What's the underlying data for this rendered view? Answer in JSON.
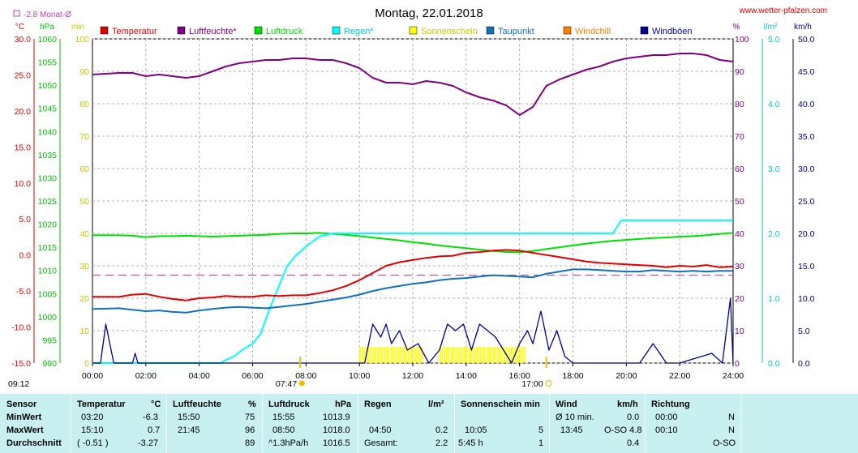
{
  "chart_data": {
    "type": "line",
    "title": "Montag, 22.01.2018",
    "source": "www.wetter-pfalzen.com",
    "month_avg_label": "-2.8 Monat-Ø",
    "colors": {
      "temperature": "#e00000",
      "humidity": "#800080",
      "pressure": "#00e000",
      "rain": "#00ffff",
      "sunshine": "#ffff00",
      "dewpoint": "#1070c0",
      "windchill": "#ff8000",
      "gusts": "#000090",
      "month_avg": "#c040c0"
    },
    "legend": [
      "Temperatur",
      "Luftfeuchte*",
      "Luftdruck",
      "Regen*",
      "Sonnenschein",
      "Taupunkt",
      "Windchill",
      "Windböen"
    ],
    "axes": {
      "temp": {
        "unit": "°C",
        "min": -15,
        "max": 30,
        "ticks": [
          "30.0",
          "25.0",
          "20.0",
          "15.0",
          "10.0",
          "5.0",
          "0.0",
          "-5.0",
          "-10.0",
          "-15.0"
        ]
      },
      "pressure": {
        "unit": "hPa",
        "min": 990,
        "max": 1060,
        "ticks": [
          "1060",
          "1055",
          "1050",
          "1045",
          "1040",
          "1035",
          "1030",
          "1025",
          "1020",
          "1015",
          "1010",
          "1005",
          "1000",
          "995",
          "990"
        ]
      },
      "sun": {
        "unit": "min",
        "min": 0,
        "max": 100,
        "ticks": [
          "100",
          "90",
          "80",
          "70",
          "60",
          "50",
          "40",
          "30",
          "20",
          "10",
          "0"
        ]
      },
      "humidity": {
        "unit": "%",
        "min": 0,
        "max": 100,
        "ticks": [
          "100",
          "90",
          "80",
          "70",
          "60",
          "50",
          "40",
          "30",
          "20",
          "10",
          "0"
        ]
      },
      "rain": {
        "unit": "l/m²",
        "min": 0,
        "max": 5,
        "ticks": [
          "5.0",
          "4.0",
          "3.0",
          "2.0",
          "1.0",
          "0.0"
        ]
      },
      "wind": {
        "unit": "km/h",
        "min": 0,
        "max": 50,
        "ticks": [
          "50.0",
          "45.0",
          "40.0",
          "35.0",
          "30.0",
          "25.0",
          "20.0",
          "15.0",
          "10.0",
          "5.0",
          "0.0"
        ]
      },
      "x_ticks": [
        "00:00",
        "02:00",
        "04:00",
        "06:00",
        "08:00",
        "10:00",
        "12:00",
        "14:00",
        "16:00",
        "18:00",
        "20:00",
        "22:00",
        "24:00"
      ]
    },
    "sunrise": "07:47",
    "sunset": "17:00",
    "sun_event_left": "09:12",
    "month_avg_temp": -2.8,
    "series": [
      {
        "name": "Temperatur",
        "axis": "temp",
        "x": [
          0,
          1,
          1.5,
          2,
          2.5,
          3,
          3.5,
          4,
          4.5,
          5,
          5.5,
          6,
          6.5,
          7,
          7.5,
          8,
          8.5,
          9,
          9.5,
          10,
          10.5,
          11,
          11.5,
          12,
          12.5,
          13,
          13.5,
          14,
          14.5,
          15,
          15.5,
          16,
          16.5,
          17,
          17.5,
          18,
          18.5,
          19,
          19.5,
          20,
          20.5,
          21,
          21.5,
          22,
          22.5,
          23,
          23.5,
          24
        ],
        "y": [
          -5.8,
          -5.8,
          -5.5,
          -5.4,
          -5.8,
          -6.1,
          -6.3,
          -6.0,
          -5.9,
          -5.7,
          -5.8,
          -5.8,
          -5.6,
          -5.7,
          -5.6,
          -5.6,
          -5.3,
          -4.9,
          -4.3,
          -3.5,
          -2.5,
          -1.5,
          -1.0,
          -0.7,
          -0.4,
          -0.2,
          -0.1,
          0.3,
          0.4,
          0.6,
          0.7,
          0.6,
          0.3,
          0.0,
          -0.3,
          -0.6,
          -0.9,
          -1.1,
          -1.2,
          -1.3,
          -1.4,
          -1.5,
          -1.7,
          -1.5,
          -1.6,
          -1.4,
          -1.7,
          -1.6
        ]
      },
      {
        "name": "Taupunkt",
        "axis": "temp",
        "x": [
          0,
          1,
          1.5,
          2,
          2.5,
          3,
          3.5,
          4,
          4.5,
          5,
          5.5,
          6,
          6.5,
          7,
          7.5,
          8,
          8.5,
          9,
          9.5,
          10,
          10.5,
          11,
          11.5,
          12,
          12.5,
          13,
          13.5,
          14,
          14.5,
          15,
          15.5,
          16,
          16.5,
          17,
          17.5,
          18,
          18.5,
          19,
          19.5,
          20,
          20.5,
          21,
          21.5,
          22,
          22.5,
          23,
          23.5,
          24
        ],
        "y": [
          -7.5,
          -7.4,
          -7.6,
          -7.8,
          -7.7,
          -7.9,
          -8.0,
          -7.7,
          -7.5,
          -7.3,
          -7.2,
          -7.3,
          -7.4,
          -7.2,
          -7.0,
          -6.8,
          -6.5,
          -6.2,
          -5.9,
          -5.5,
          -5.0,
          -4.6,
          -4.3,
          -4.0,
          -3.8,
          -3.5,
          -3.3,
          -3.2,
          -3.0,
          -2.8,
          -2.9,
          -3.0,
          -3.1,
          -2.6,
          -2.3,
          -2.0,
          -2.0,
          -2.1,
          -2.2,
          -2.3,
          -2.3,
          -2.1,
          -2.2,
          -2.3,
          -2.2,
          -2.3,
          -2.2,
          -2.2
        ]
      },
      {
        "name": "Luftfeuchte",
        "axis": "humidity",
        "x": [
          0,
          1,
          1.5,
          2,
          2.5,
          3,
          3.5,
          4,
          4.5,
          5,
          5.5,
          6,
          6.5,
          7,
          7.5,
          8,
          8.5,
          9,
          9.5,
          10,
          10.5,
          11,
          11.5,
          12,
          12.5,
          13,
          13.5,
          14,
          14.5,
          15,
          15.5,
          16,
          16.5,
          17,
          17.5,
          18,
          18.5,
          19,
          19.5,
          20,
          20.5,
          21,
          21.5,
          22,
          22.5,
          23,
          23.5,
          24
        ],
        "y": [
          89,
          89.5,
          89.5,
          88.5,
          89,
          88.5,
          88,
          88.5,
          90,
          91.5,
          92.5,
          93,
          93.5,
          93.5,
          94,
          94,
          93.5,
          93.5,
          92.5,
          91,
          88,
          86.5,
          86.5,
          86,
          87,
          86.5,
          85.5,
          83.5,
          82,
          81,
          79.5,
          76.5,
          79,
          85.5,
          87.5,
          89,
          90.5,
          91.5,
          93,
          94,
          94.5,
          95,
          95,
          95.5,
          95.5,
          95,
          93.5,
          93
        ]
      },
      {
        "name": "Luftdruck",
        "axis": "pressure",
        "x": [
          0,
          1,
          1.5,
          2,
          2.5,
          3,
          3.5,
          4,
          4.5,
          5,
          5.5,
          6,
          6.5,
          7,
          7.5,
          8,
          8.5,
          9,
          9.5,
          10,
          10.5,
          11,
          11.5,
          12,
          12.5,
          13,
          13.5,
          14,
          14.5,
          15,
          15.5,
          16,
          16.5,
          17,
          17.5,
          18,
          18.5,
          19,
          19.5,
          20,
          20.5,
          21,
          21.5,
          22,
          22.5,
          23,
          23.5,
          24
        ],
        "y": [
          1017.6,
          1017.6,
          1017.5,
          1017.2,
          1017.4,
          1017.4,
          1017.5,
          1017.4,
          1017.3,
          1017.4,
          1017.5,
          1017.6,
          1017.7,
          1017.9,
          1018.0,
          1018.0,
          1018.1,
          1017.9,
          1017.7,
          1017.4,
          1017.1,
          1016.8,
          1016.5,
          1016.1,
          1015.8,
          1015.4,
          1015.1,
          1014.8,
          1014.5,
          1014.2,
          1014.0,
          1013.9,
          1014.2,
          1014.6,
          1015.0,
          1015.4,
          1015.8,
          1016.1,
          1016.4,
          1016.6,
          1016.8,
          1017.0,
          1017.1,
          1017.3,
          1017.4,
          1017.6,
          1017.9,
          1018.1
        ]
      },
      {
        "name": "Regen",
        "axis": "rain",
        "x": [
          0,
          4.8,
          5.0,
          5.3,
          5.6,
          6.0,
          6.3,
          6.6,
          7.0,
          7.3,
          7.6,
          8.0,
          8.5,
          9.0,
          10.0,
          12.0,
          14.0,
          16.0,
          18.0,
          19.5,
          19.8,
          20,
          22,
          24
        ],
        "y": [
          0,
          0,
          0.05,
          0.1,
          0.2,
          0.3,
          0.45,
          0.8,
          1.2,
          1.5,
          1.65,
          1.8,
          1.95,
          2.0,
          2.0,
          2.0,
          2.0,
          2.0,
          2.0,
          2.0,
          2.2,
          2.2,
          2.2,
          2.2
        ]
      },
      {
        "name": "Windböen",
        "axis": "wind",
        "x": [
          0,
          0.3,
          0.5,
          0.8,
          1.3,
          1.5,
          1.6,
          1.7,
          10.2,
          10.5,
          10.8,
          11.0,
          11.2,
          11.5,
          11.8,
          12.2,
          12.6,
          13.0,
          13.3,
          13.6,
          13.9,
          14.2,
          14.5,
          14.8,
          15.1,
          15.4,
          15.7,
          16.0,
          16.3,
          16.5,
          16.8,
          17.1,
          17.4,
          17.7,
          18,
          20.5,
          21,
          21.5,
          22,
          23.2,
          23.6,
          23.9,
          24
        ],
        "y": [
          0,
          0,
          6,
          0,
          0,
          0,
          1.5,
          0,
          0,
          6,
          4,
          6,
          3,
          5,
          2,
          3,
          0,
          2,
          6,
          5,
          6,
          2,
          6,
          5,
          4,
          2,
          0,
          3,
          5,
          3,
          8,
          2,
          5,
          1,
          0,
          0,
          3,
          0,
          0,
          1.5,
          0,
          10,
          0
        ]
      }
    ],
    "sunshine_bars": {
      "axis": "sun",
      "intervals": [
        [
          10.0,
          12.4
        ],
        [
          13.0,
          16.2
        ]
      ],
      "value": 5
    }
  },
  "summary": {
    "headers": {
      "sensor": "Sensor",
      "temperature": "Temperatur",
      "temp_unit": "°C",
      "humidity": "Luftfeuchte",
      "hum_unit": "%",
      "pressure": "Luftdruck",
      "press_unit": "hPa",
      "rain": "Regen",
      "rain_unit": "l/m²",
      "sunshine": "Sonnenschein min",
      "wind": "Wind",
      "wind_unit": "km/h",
      "direction": "Richtung"
    },
    "rows": [
      {
        "label": "MinWert",
        "t_time": "03:20",
        "t_val": "-6.3",
        "h_time": "15:50",
        "h_val": "75",
        "p_time": "15:55",
        "p_val": "1013.9",
        "r_time": "",
        "r_val": "",
        "s_time": "",
        "s_val": "",
        "w_time": "Ø 10 min.",
        "w_val": "0.0",
        "d_time": "00:00",
        "d_val": "N"
      },
      {
        "label": "MaxWert",
        "t_time": "15:10",
        "t_val": "0.7",
        "h_time": "21:45",
        "h_val": "96",
        "p_time": "08:50",
        "p_val": "1018.0",
        "r_time": "04:50",
        "r_val": "0.2",
        "s_time": "10:05",
        "s_val": "5",
        "w_time": "13:45",
        "w_val": "O-SO 4.8",
        "d_time": "00:10",
        "d_val": "N"
      },
      {
        "label": "Durchschnitt",
        "t_time": "( -0.51 )",
        "t_val": "-3.27",
        "h_time": "",
        "h_val": "89",
        "p_time": "^1.3hPa/h",
        "p_val": "1016.5",
        "r_time": "Gesamt:",
        "r_val": "2.2",
        "s_time": "5:45 h",
        "s_val": "1",
        "w_time": "",
        "w_val": "0.4",
        "d_time": "",
        "d_val": "O-SO"
      }
    ]
  }
}
